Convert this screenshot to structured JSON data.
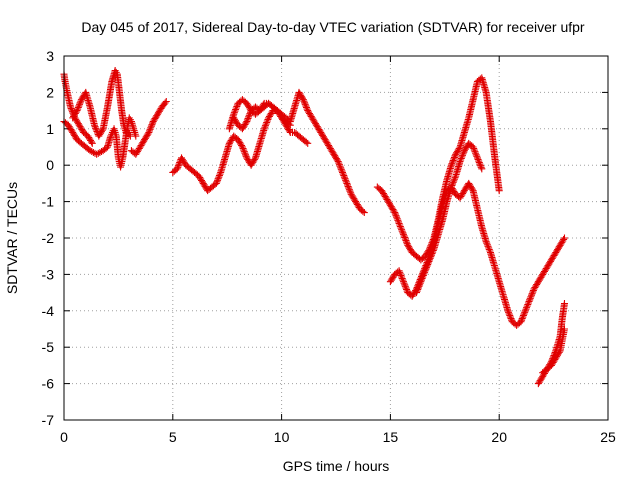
{
  "chart_data": {
    "type": "scatter",
    "title": "Day 045 of 2017, Sidereal Day-to-day VTEC variation (SDTVAR) for receiver ufpr",
    "xlabel": "GPS time / hours",
    "ylabel": "SDTVAR / TECUs",
    "xlim": [
      0,
      25
    ],
    "ylim": [
      -7,
      3
    ],
    "xticks": [
      0,
      5,
      10,
      15,
      20,
      25
    ],
    "yticks": [
      -7,
      -6,
      -5,
      -4,
      -3,
      -2,
      -1,
      0,
      1,
      2,
      3
    ],
    "grid": true,
    "marker": "plus",
    "color": "#e00000",
    "series": [
      {
        "x": [
          0.0,
          0.05,
          0.15,
          0.3,
          0.5,
          0.7,
          0.9,
          1.1,
          1.3
        ],
        "y": [
          2.5,
          2.3,
          2.0,
          1.6,
          1.3,
          1.1,
          0.9,
          0.8,
          0.6
        ]
      },
      {
        "x": [
          0.0,
          0.2,
          0.4,
          0.6,
          0.8,
          1.0,
          1.2,
          1.5,
          1.8,
          2.0,
          2.15,
          2.3,
          2.4,
          2.5,
          2.6,
          2.7,
          2.8,
          2.9,
          3.0,
          3.1,
          3.2,
          3.3
        ],
        "y": [
          1.2,
          1.1,
          0.9,
          0.7,
          0.6,
          0.5,
          0.4,
          0.3,
          0.4,
          0.5,
          0.8,
          1.0,
          0.8,
          0.2,
          -0.05,
          0.2,
          0.6,
          1.0,
          1.3,
          1.2,
          1.0,
          0.8
        ]
      },
      {
        "x": [
          0.4,
          0.6,
          0.8,
          1.0,
          1.2,
          1.4,
          1.6,
          1.8,
          2.0,
          2.2,
          2.35,
          2.45,
          2.55,
          2.65,
          2.75,
          2.85,
          2.95,
          3.05
        ],
        "y": [
          1.3,
          1.5,
          1.8,
          2.0,
          1.6,
          1.1,
          0.8,
          1.0,
          1.6,
          2.3,
          2.6,
          2.5,
          2.0,
          1.5,
          1.1,
          0.9,
          0.9,
          0.8
        ]
      },
      {
        "x": [
          3.1,
          3.3,
          3.5,
          3.7,
          3.9,
          4.1,
          4.3,
          4.5,
          4.7
        ],
        "y": [
          0.4,
          0.3,
          0.5,
          0.7,
          0.9,
          1.2,
          1.4,
          1.6,
          1.75
        ]
      },
      {
        "x": [
          5.0,
          5.2,
          5.4,
          5.6,
          5.8,
          6.0,
          6.2,
          6.4,
          6.6,
          6.8,
          7.0,
          7.2,
          7.4,
          7.6,
          7.8,
          8.0,
          8.2,
          8.4,
          8.6,
          8.8,
          9.0,
          9.2,
          9.4,
          9.6,
          9.8,
          10.0,
          10.2,
          10.4,
          10.6,
          10.8,
          11.0,
          11.2
        ],
        "y": [
          -0.2,
          -0.1,
          0.2,
          0.0,
          -0.1,
          -0.2,
          -0.3,
          -0.5,
          -0.7,
          -0.6,
          -0.5,
          -0.2,
          0.2,
          0.6,
          0.8,
          0.7,
          0.5,
          0.2,
          0.0,
          0.2,
          0.6,
          1.0,
          1.3,
          1.5,
          1.5,
          1.3,
          1.1,
          0.9,
          0.9,
          0.8,
          0.7,
          0.6
        ]
      },
      {
        "x": [
          7.6,
          7.8,
          8.0,
          8.2,
          8.4,
          8.6,
          8.8,
          9.0,
          9.2,
          9.4,
          9.6,
          9.8,
          10.0,
          10.2,
          10.4,
          10.6,
          10.8,
          11.0,
          11.2,
          11.4,
          11.6,
          11.8,
          12.0,
          12.2,
          12.4,
          12.6,
          12.8,
          13.0,
          13.2,
          13.4,
          13.6,
          13.8
        ],
        "y": [
          1.0,
          1.4,
          1.7,
          1.8,
          1.7,
          1.5,
          1.4,
          1.5,
          1.7,
          1.7,
          1.6,
          1.5,
          1.4,
          1.3,
          1.2,
          1.6,
          2.0,
          1.8,
          1.5,
          1.3,
          1.1,
          0.9,
          0.7,
          0.5,
          0.3,
          0.1,
          -0.2,
          -0.5,
          -0.8,
          -1.0,
          -1.2,
          -1.3
        ]
      },
      {
        "x": [
          7.8,
          8.0,
          8.2,
          8.4,
          8.6,
          8.8,
          9.0,
          9.2,
          9.4,
          9.6,
          9.8,
          10.0,
          10.2,
          10.4
        ],
        "y": [
          1.3,
          1.1,
          1.0,
          1.2,
          1.5,
          1.6,
          1.5,
          1.6,
          1.7,
          1.6,
          1.5,
          1.3,
          1.2,
          1.1
        ]
      },
      {
        "x": [
          14.4,
          14.6,
          14.8,
          15.0,
          15.2,
          15.4,
          15.6,
          15.8,
          16.0,
          16.2,
          16.4,
          16.6,
          16.8,
          17.0,
          17.2,
          17.4,
          17.6,
          17.8,
          18.0,
          18.2,
          18.4,
          18.6,
          18.8,
          19.0,
          19.2,
          19.4,
          19.6,
          19.8,
          20.0
        ],
        "y": [
          -0.6,
          -0.7,
          -0.9,
          -1.1,
          -1.3,
          -1.6,
          -1.9,
          -2.2,
          -2.4,
          -2.5,
          -2.6,
          -2.5,
          -2.3,
          -2.0,
          -1.5,
          -0.9,
          -0.4,
          0.0,
          0.3,
          0.5,
          0.9,
          1.3,
          1.8,
          2.3,
          2.4,
          2.0,
          1.2,
          0.2,
          -0.7
        ]
      },
      {
        "x": [
          15.0,
          15.2,
          15.4,
          15.6,
          15.8,
          16.0,
          16.2,
          16.4,
          16.6,
          16.8,
          17.0,
          17.2,
          17.4,
          17.6,
          17.8,
          18.0,
          18.2,
          18.4,
          18.6,
          18.8,
          19.0,
          19.2,
          19.4,
          19.6,
          19.8,
          20.0,
          20.2,
          20.4,
          20.6,
          20.8,
          21.0,
          21.2,
          21.4
        ],
        "y": [
          -3.2,
          -3.0,
          -2.9,
          -3.2,
          -3.5,
          -3.6,
          -3.4,
          -3.1,
          -2.8,
          -2.5,
          -2.1,
          -1.6,
          -1.1,
          -0.7,
          -0.6,
          -0.8,
          -0.9,
          -0.7,
          -0.5,
          -0.7,
          -1.2,
          -1.7,
          -2.1,
          -2.4,
          -2.8,
          -3.2,
          -3.6,
          -4.0,
          -4.3,
          -4.4,
          -4.3,
          -4.0,
          -3.7
        ]
      },
      {
        "x": [
          16.2,
          16.4,
          16.6,
          16.8,
          17.0,
          17.2,
          17.4,
          17.6,
          17.8,
          18.0,
          18.2,
          18.4,
          18.6,
          18.8,
          19.0,
          19.2
        ],
        "y": [
          -3.5,
          -3.2,
          -2.9,
          -2.6,
          -2.3,
          -1.9,
          -1.5,
          -1.0,
          -0.6,
          -0.3,
          0.1,
          0.4,
          0.6,
          0.5,
          0.2,
          -0.1
        ]
      },
      {
        "x": [
          21.4,
          21.6,
          21.8,
          22.0,
          22.2,
          22.4,
          22.6,
          22.8,
          23.0
        ],
        "y": [
          -3.7,
          -3.4,
          -3.2,
          -3.0,
          -2.8,
          -2.6,
          -2.4,
          -2.2,
          -2.0
        ]
      },
      {
        "x": [
          21.8,
          22.0,
          22.2,
          22.4,
          22.6,
          22.8,
          22.9,
          23.0
        ],
        "y": [
          -6.0,
          -5.8,
          -5.6,
          -5.5,
          -5.3,
          -5.1,
          -4.8,
          -4.5
        ]
      },
      {
        "x": [
          22.0,
          22.2,
          22.4,
          22.6,
          22.8,
          22.9,
          23.0
        ],
        "y": [
          -5.7,
          -5.6,
          -5.4,
          -5.1,
          -4.7,
          -4.2,
          -3.8
        ]
      }
    ]
  }
}
